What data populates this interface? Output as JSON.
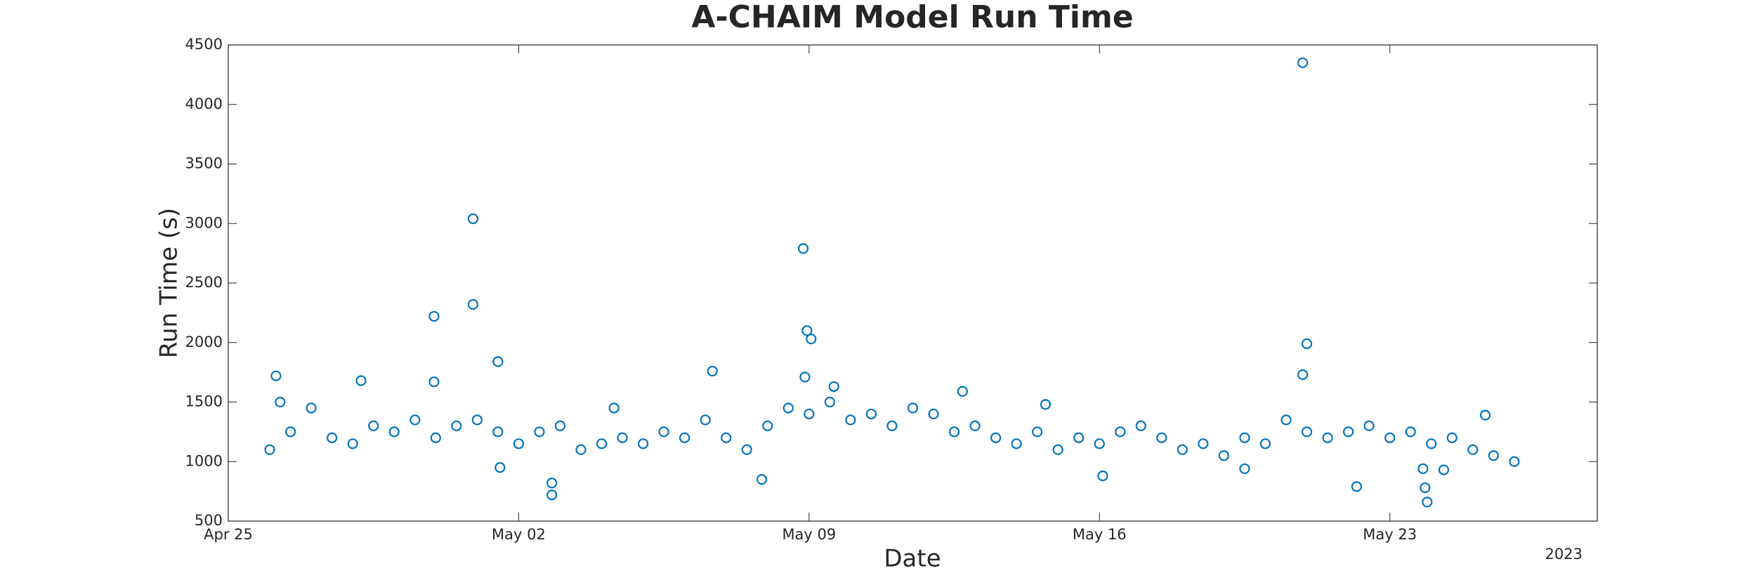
{
  "chart_data": {
    "type": "scatter",
    "title": "A-CHAIM Model Run Time",
    "x_label": "Date",
    "y_label": "Run Time (s)",
    "x_secondary_label": "2023",
    "color": "#0072BD",
    "x": [
      1.0,
      1.5,
      2.0,
      2.5,
      3.0,
      3.5,
      4.0,
      4.5,
      5.0,
      5.5,
      6.0,
      6.5,
      7.0,
      7.5,
      8.0,
      8.5,
      9.0,
      9.5,
      10.0,
      10.5,
      11.0,
      11.5,
      12.0,
      12.5,
      13.0,
      13.5,
      14.0,
      14.5,
      15.0,
      15.5,
      16.0,
      16.5,
      17.0,
      17.5,
      18.0,
      18.5,
      19.0,
      19.5,
      20.0,
      20.5,
      21.0,
      21.5,
      22.0,
      22.5,
      23.0,
      23.5,
      24.0,
      24.5,
      25.0,
      25.5,
      26.0,
      26.5,
      27.0,
      27.5,
      28.0,
      28.5,
      29.0,
      29.5,
      30.0,
      30.5,
      31.0,
      1.15,
      1.25,
      3.2,
      4.96,
      4.96,
      5.9,
      5.9,
      6.5,
      6.55,
      7.8,
      7.8,
      9.3,
      11.67,
      12.86,
      13.86,
      13.95,
      14.05,
      13.9,
      14.6,
      17.7,
      19.7,
      21.08,
      24.5,
      25.9,
      26.0,
      25.9,
      27.2,
      28.8,
      28.85,
      28.9,
      29.3,
      30.3
    ],
    "values": [
      1100,
      1250,
      1450,
      1200,
      1150,
      1300,
      1250,
      1350,
      1200,
      1300,
      1350,
      1250,
      1150,
      1250,
      1300,
      1100,
      1150,
      1200,
      1150,
      1250,
      1200,
      1350,
      1200,
      1100,
      1300,
      1450,
      1400,
      1500,
      1350,
      1400,
      1300,
      1450,
      1400,
      1250,
      1300,
      1200,
      1150,
      1250,
      1100,
      1200,
      1150,
      1250,
      1300,
      1200,
      1100,
      1150,
      1050,
      1200,
      1150,
      1350,
      1250,
      1200,
      1250,
      1300,
      1200,
      1250,
      1150,
      1200,
      1100,
      1050,
      1000,
      1720,
      1500,
      1680,
      2220,
      1670,
      3040,
      2320,
      1840,
      950,
      720,
      820,
      1450,
      1760,
      850,
      2790,
      2100,
      2030,
      1710,
      1630,
      1590,
      1480,
      880,
      940,
      4350,
      1990,
      1730,
      790,
      940,
      780,
      660,
      930,
      1390
    ],
    "xlim": [
      0,
      33
    ],
    "xticks": [
      {
        "value": 0,
        "label": "Apr 25"
      },
      {
        "value": 7,
        "label": "May 02"
      },
      {
        "value": 14,
        "label": "May 09"
      },
      {
        "value": 21,
        "label": "May 16"
      },
      {
        "value": 28,
        "label": "May 23"
      }
    ],
    "ylim": [
      500,
      4500
    ],
    "yticks": [
      500,
      1000,
      1500,
      2000,
      2500,
      3000,
      3500,
      4000,
      4500
    ]
  }
}
